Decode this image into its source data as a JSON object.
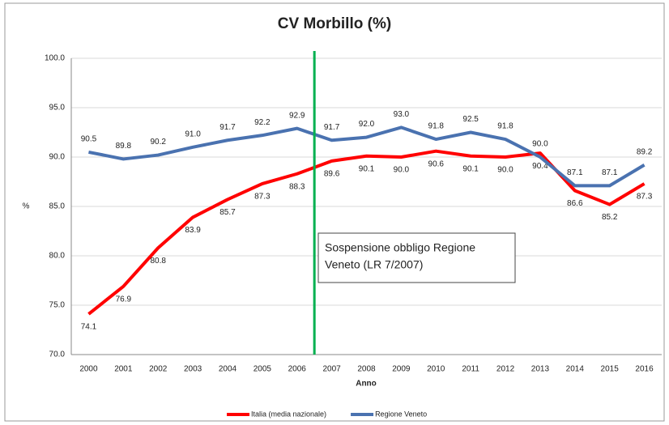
{
  "chart_data": {
    "type": "line",
    "title": "CV Morbillo (%)",
    "x_label": "Anno",
    "y_label": "%",
    "categories": [
      "2000",
      "2001",
      "2002",
      "2003",
      "2004",
      "2005",
      "2006",
      "2007",
      "2008",
      "2009",
      "2010",
      "2011",
      "2012",
      "2013",
      "2014",
      "2015",
      "2016"
    ],
    "series": [
      {
        "name": "Italia (media nazionale)",
        "color": "#ff0000",
        "values": [
          74.1,
          76.9,
          80.8,
          83.9,
          85.7,
          87.3,
          88.3,
          89.6,
          90.1,
          90.0,
          90.6,
          90.1,
          90.0,
          90.4,
          86.6,
          85.2,
          87.3
        ],
        "value_labels": [
          "74.1",
          "76.9",
          "80.8",
          "83.9",
          "85.7",
          "87.3",
          "88.3",
          "89.6",
          "90.1",
          "90.0",
          "90.6",
          "90.1",
          "90.0",
          "90.4",
          "86.6",
          "85.2",
          "87.3"
        ]
      },
      {
        "name": "Regione Veneto",
        "color": "#4a72b0",
        "values": [
          90.5,
          89.8,
          90.2,
          91.0,
          91.7,
          92.2,
          92.9,
          91.7,
          92.0,
          93.0,
          91.8,
          92.5,
          91.8,
          90.0,
          87.1,
          87.1,
          89.2
        ],
        "value_labels": [
          "90.5",
          "89.8",
          "90.2",
          "91.0",
          "91.7",
          "92.2",
          "92.9",
          "91.7",
          "92.0",
          "93.0",
          "91.8",
          "92.5",
          "91.8",
          "90.0",
          "87.1",
          "87.1",
          "89.2"
        ]
      }
    ],
    "ylim": [
      70,
      100
    ],
    "yticks": [
      {
        "value": 70,
        "label": "70.0"
      },
      {
        "value": 75,
        "label": "75.0"
      },
      {
        "value": 80,
        "label": "80.0"
      },
      {
        "value": 85,
        "label": "85.0"
      },
      {
        "value": 90,
        "label": "90.0"
      },
      {
        "value": 95,
        "label": "95.0"
      },
      {
        "value": 100,
        "label": "100.0"
      }
    ],
    "annotation": {
      "lines": [
        "Sospensione obbligo Regione",
        "Veneto (LR 7/2007)"
      ],
      "line_color": "#00b050"
    },
    "legend": "bottom"
  }
}
